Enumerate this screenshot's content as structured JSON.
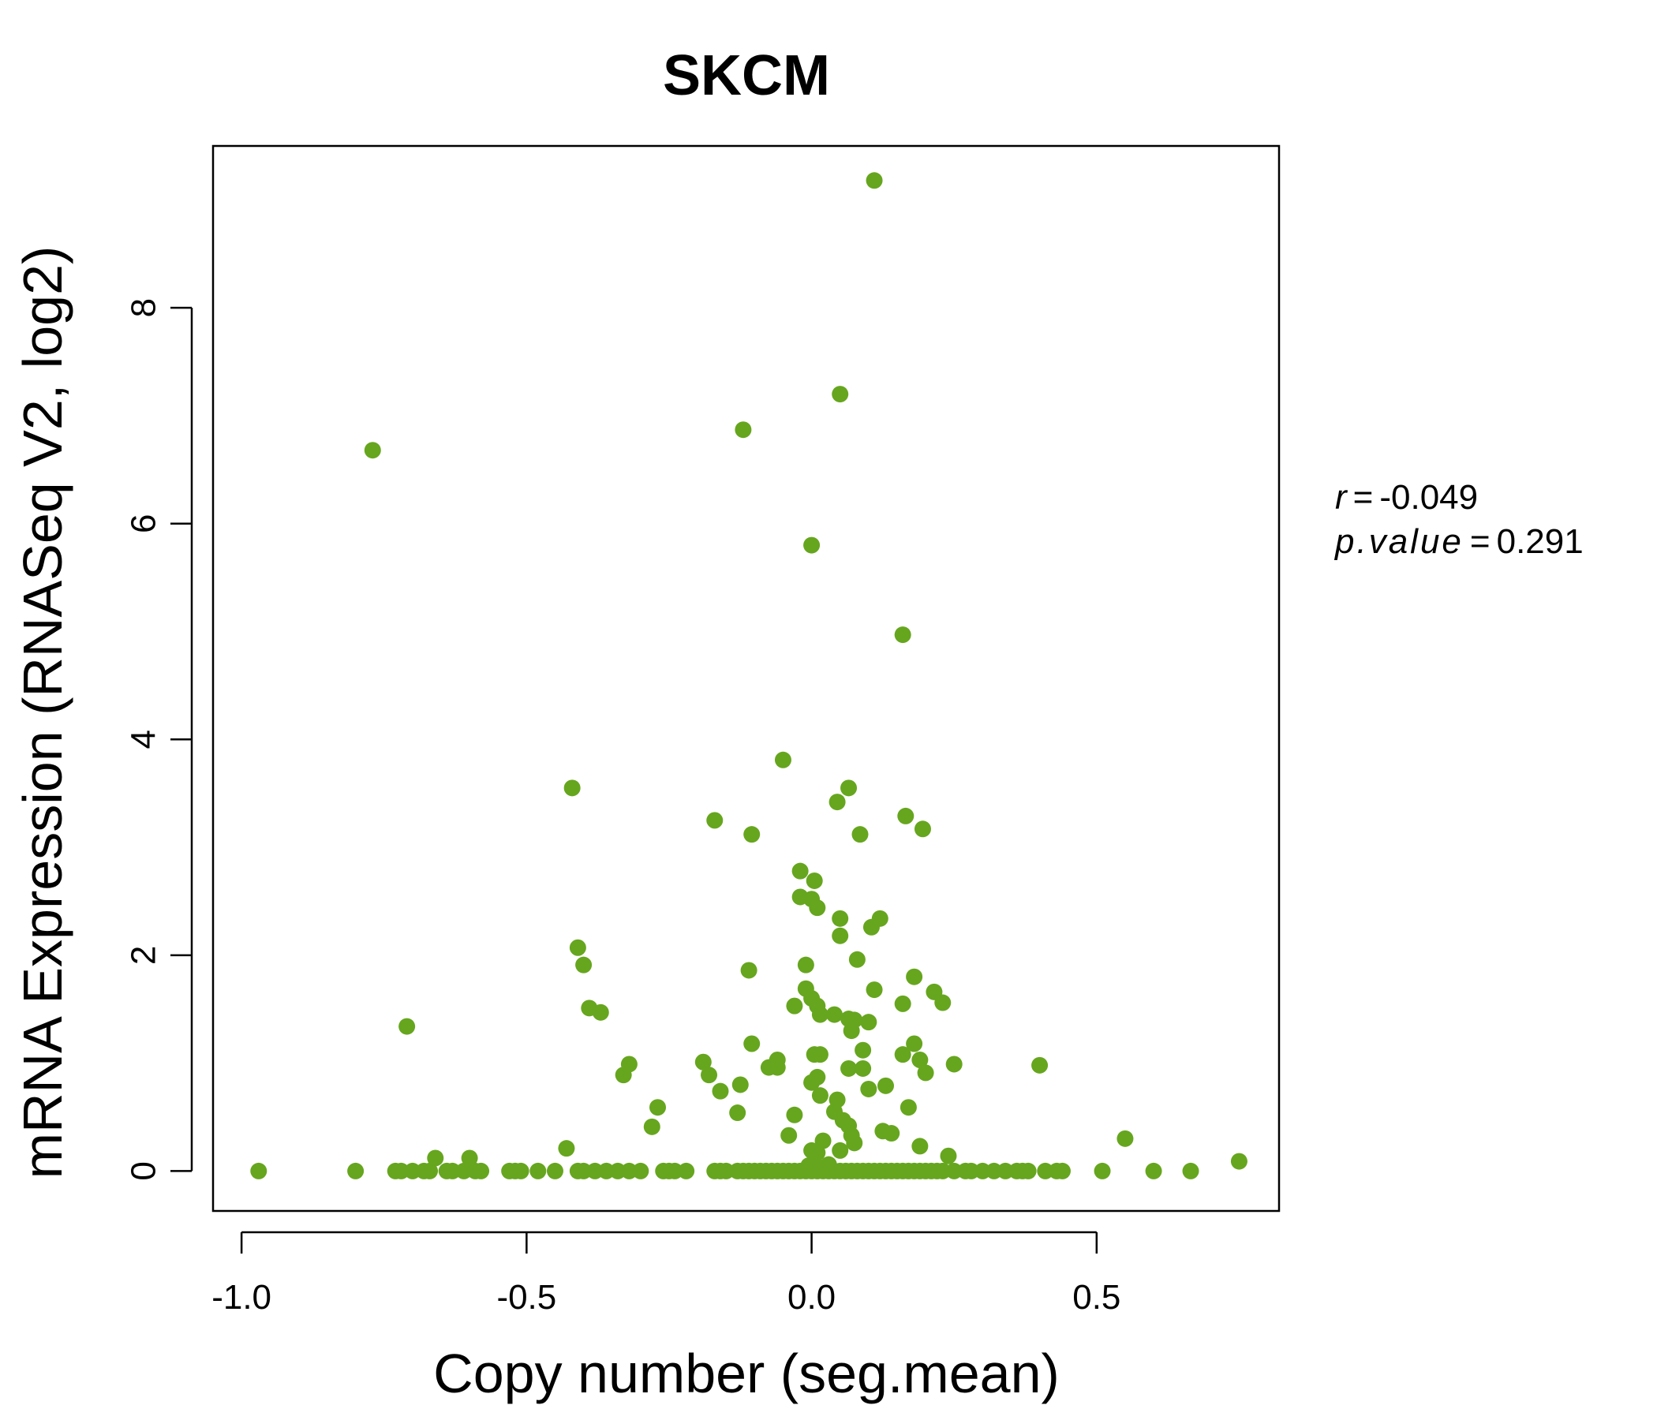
{
  "chart_data": {
    "type": "scatter",
    "title": "SKCM",
    "xlabel": "Copy number (seg.mean)",
    "ylabel": "mRNA Expression (RNASeq V2, log2)",
    "xlim": [
      -1.05,
      0.82
    ],
    "ylim": [
      -0.37,
      9.5
    ],
    "x_ticks": [
      -1.0,
      -0.5,
      0.0,
      0.5
    ],
    "x_tick_labels": [
      "-1.0",
      "-0.5",
      "0.0",
      "0.5"
    ],
    "y_ticks": [
      0,
      2,
      4,
      6,
      8
    ],
    "y_tick_labels": [
      "0",
      "2",
      "4",
      "6",
      "8"
    ],
    "grid": false,
    "color": "#66a61e",
    "stats": {
      "r_label": "r",
      "r_value": "-0.049",
      "p_label": "p.value",
      "p_value": "0.291"
    },
    "points": [
      {
        "x": 0.11,
        "y": 9.18
      },
      {
        "x": 0.05,
        "y": 7.2
      },
      {
        "x": -0.12,
        "y": 6.87
      },
      {
        "x": -0.77,
        "y": 6.68
      },
      {
        "x": 0.0,
        "y": 5.8
      },
      {
        "x": 0.16,
        "y": 4.97
      },
      {
        "x": -0.05,
        "y": 3.81
      },
      {
        "x": -0.42,
        "y": 3.55
      },
      {
        "x": 0.065,
        "y": 3.55
      },
      {
        "x": 0.045,
        "y": 3.42
      },
      {
        "x": 0.165,
        "y": 3.29
      },
      {
        "x": -0.17,
        "y": 3.25
      },
      {
        "x": 0.195,
        "y": 3.17
      },
      {
        "x": -0.105,
        "y": 3.12
      },
      {
        "x": 0.085,
        "y": 3.12
      },
      {
        "x": -0.02,
        "y": 2.78
      },
      {
        "x": 0.005,
        "y": 2.69
      },
      {
        "x": -0.02,
        "y": 2.54
      },
      {
        "x": 0.0,
        "y": 2.52
      },
      {
        "x": 0.01,
        "y": 2.44
      },
      {
        "x": 0.05,
        "y": 2.34
      },
      {
        "x": 0.12,
        "y": 2.34
      },
      {
        "x": 0.105,
        "y": 2.26
      },
      {
        "x": 0.05,
        "y": 2.18
      },
      {
        "x": -0.41,
        "y": 2.07
      },
      {
        "x": 0.08,
        "y": 1.96
      },
      {
        "x": -0.4,
        "y": 1.91
      },
      {
        "x": -0.11,
        "y": 1.86
      },
      {
        "x": -0.01,
        "y": 1.91
      },
      {
        "x": 0.18,
        "y": 1.8
      },
      {
        "x": -0.01,
        "y": 1.69
      },
      {
        "x": 0.11,
        "y": 1.68
      },
      {
        "x": 0.215,
        "y": 1.66
      },
      {
        "x": 0.0,
        "y": 1.6
      },
      {
        "x": 0.23,
        "y": 1.56
      },
      {
        "x": 0.16,
        "y": 1.55
      },
      {
        "x": 0.01,
        "y": 1.53
      },
      {
        "x": -0.03,
        "y": 1.53
      },
      {
        "x": -0.39,
        "y": 1.51
      },
      {
        "x": -0.37,
        "y": 1.47
      },
      {
        "x": 0.015,
        "y": 1.45
      },
      {
        "x": 0.04,
        "y": 1.45
      },
      {
        "x": 0.065,
        "y": 1.41
      },
      {
        "x": 0.075,
        "y": 1.4
      },
      {
        "x": 0.1,
        "y": 1.38
      },
      {
        "x": -0.71,
        "y": 1.34
      },
      {
        "x": 0.07,
        "y": 1.3
      },
      {
        "x": -0.105,
        "y": 1.18
      },
      {
        "x": 0.18,
        "y": 1.18
      },
      {
        "x": 0.09,
        "y": 1.12
      },
      {
        "x": 0.005,
        "y": 1.08
      },
      {
        "x": 0.015,
        "y": 1.08
      },
      {
        "x": 0.16,
        "y": 1.08
      },
      {
        "x": 0.19,
        "y": 1.03
      },
      {
        "x": -0.06,
        "y": 1.03
      },
      {
        "x": -0.19,
        "y": 1.01
      },
      {
        "x": -0.32,
        "y": 0.99
      },
      {
        "x": 0.25,
        "y": 0.99
      },
      {
        "x": 0.4,
        "y": 0.98
      },
      {
        "x": -0.075,
        "y": 0.96
      },
      {
        "x": -0.06,
        "y": 0.96
      },
      {
        "x": 0.065,
        "y": 0.95
      },
      {
        "x": 0.09,
        "y": 0.95
      },
      {
        "x": 0.2,
        "y": 0.91
      },
      {
        "x": -0.33,
        "y": 0.89
      },
      {
        "x": -0.18,
        "y": 0.89
      },
      {
        "x": 0.01,
        "y": 0.87
      },
      {
        "x": 0.0,
        "y": 0.82
      },
      {
        "x": -0.125,
        "y": 0.8
      },
      {
        "x": 0.13,
        "y": 0.79
      },
      {
        "x": 0.1,
        "y": 0.76
      },
      {
        "x": -0.16,
        "y": 0.74
      },
      {
        "x": 0.015,
        "y": 0.7
      },
      {
        "x": 0.045,
        "y": 0.66
      },
      {
        "x": -0.27,
        "y": 0.59
      },
      {
        "x": 0.17,
        "y": 0.59
      },
      {
        "x": 0.04,
        "y": 0.55
      },
      {
        "x": -0.13,
        "y": 0.54
      },
      {
        "x": -0.03,
        "y": 0.52
      },
      {
        "x": 0.055,
        "y": 0.47
      },
      {
        "x": 0.065,
        "y": 0.42
      },
      {
        "x": -0.28,
        "y": 0.41
      },
      {
        "x": 0.125,
        "y": 0.37
      },
      {
        "x": 0.14,
        "y": 0.35
      },
      {
        "x": 0.07,
        "y": 0.33
      },
      {
        "x": 0.55,
        "y": 0.3
      },
      {
        "x": -0.04,
        "y": 0.33
      },
      {
        "x": 0.02,
        "y": 0.28
      },
      {
        "x": 0.075,
        "y": 0.26
      },
      {
        "x": 0.19,
        "y": 0.23
      },
      {
        "x": -0.43,
        "y": 0.21
      },
      {
        "x": 0.0,
        "y": 0.19
      },
      {
        "x": 0.05,
        "y": 0.19
      },
      {
        "x": 0.01,
        "y": 0.17
      },
      {
        "x": 0.24,
        "y": 0.14
      },
      {
        "x": -0.66,
        "y": 0.12
      },
      {
        "x": -0.6,
        "y": 0.12
      },
      {
        "x": 0.75,
        "y": 0.09
      },
      {
        "x": 0.005,
        "y": 0.07
      },
      {
        "x": 0.03,
        "y": 0.06
      },
      {
        "x": -0.005,
        "y": 0.05
      },
      {
        "x": -0.97,
        "y": 0.0
      },
      {
        "x": -0.8,
        "y": 0.0
      },
      {
        "x": -0.73,
        "y": 0.0
      },
      {
        "x": -0.72,
        "y": 0.0
      },
      {
        "x": -0.7,
        "y": 0.0
      },
      {
        "x": -0.68,
        "y": 0.0
      },
      {
        "x": -0.67,
        "y": 0.0
      },
      {
        "x": -0.64,
        "y": 0.0
      },
      {
        "x": -0.63,
        "y": 0.0
      },
      {
        "x": -0.61,
        "y": 0.0
      },
      {
        "x": -0.59,
        "y": 0.0
      },
      {
        "x": -0.58,
        "y": 0.0
      },
      {
        "x": -0.53,
        "y": 0.0
      },
      {
        "x": -0.52,
        "y": 0.0
      },
      {
        "x": -0.51,
        "y": 0.0
      },
      {
        "x": -0.48,
        "y": 0.0
      },
      {
        "x": -0.45,
        "y": 0.0
      },
      {
        "x": -0.41,
        "y": 0.0
      },
      {
        "x": -0.4,
        "y": 0.0
      },
      {
        "x": -0.38,
        "y": 0.0
      },
      {
        "x": -0.36,
        "y": 0.0
      },
      {
        "x": -0.34,
        "y": 0.0
      },
      {
        "x": -0.32,
        "y": 0.0
      },
      {
        "x": -0.3,
        "y": 0.0
      },
      {
        "x": -0.26,
        "y": 0.0
      },
      {
        "x": -0.25,
        "y": 0.0
      },
      {
        "x": -0.24,
        "y": 0.0
      },
      {
        "x": -0.22,
        "y": 0.0
      },
      {
        "x": -0.17,
        "y": 0.0
      },
      {
        "x": -0.16,
        "y": 0.0
      },
      {
        "x": -0.15,
        "y": 0.0
      },
      {
        "x": -0.13,
        "y": 0.0
      },
      {
        "x": -0.12,
        "y": 0.0
      },
      {
        "x": -0.11,
        "y": 0.0
      },
      {
        "x": -0.1,
        "y": 0.0
      },
      {
        "x": -0.09,
        "y": 0.0
      },
      {
        "x": -0.08,
        "y": 0.0
      },
      {
        "x": -0.07,
        "y": 0.0
      },
      {
        "x": -0.06,
        "y": 0.0
      },
      {
        "x": -0.05,
        "y": 0.0
      },
      {
        "x": -0.04,
        "y": 0.0
      },
      {
        "x": -0.03,
        "y": 0.0
      },
      {
        "x": -0.02,
        "y": 0.0
      },
      {
        "x": -0.01,
        "y": 0.0
      },
      {
        "x": 0.0,
        "y": 0.0
      },
      {
        "x": 0.01,
        "y": 0.0
      },
      {
        "x": 0.02,
        "y": 0.0
      },
      {
        "x": 0.03,
        "y": 0.0
      },
      {
        "x": 0.04,
        "y": 0.0
      },
      {
        "x": 0.05,
        "y": 0.0
      },
      {
        "x": 0.06,
        "y": 0.0
      },
      {
        "x": 0.07,
        "y": 0.0
      },
      {
        "x": 0.08,
        "y": 0.0
      },
      {
        "x": 0.09,
        "y": 0.0
      },
      {
        "x": 0.1,
        "y": 0.0
      },
      {
        "x": 0.11,
        "y": 0.0
      },
      {
        "x": 0.12,
        "y": 0.0
      },
      {
        "x": 0.13,
        "y": 0.0
      },
      {
        "x": 0.14,
        "y": 0.0
      },
      {
        "x": 0.15,
        "y": 0.0
      },
      {
        "x": 0.16,
        "y": 0.0
      },
      {
        "x": 0.17,
        "y": 0.0
      },
      {
        "x": 0.18,
        "y": 0.0
      },
      {
        "x": 0.19,
        "y": 0.0
      },
      {
        "x": 0.2,
        "y": 0.0
      },
      {
        "x": 0.21,
        "y": 0.0
      },
      {
        "x": 0.22,
        "y": 0.0
      },
      {
        "x": 0.23,
        "y": 0.0
      },
      {
        "x": 0.25,
        "y": 0.0
      },
      {
        "x": 0.27,
        "y": 0.0
      },
      {
        "x": 0.28,
        "y": 0.0
      },
      {
        "x": 0.3,
        "y": 0.0
      },
      {
        "x": 0.32,
        "y": 0.0
      },
      {
        "x": 0.34,
        "y": 0.0
      },
      {
        "x": 0.36,
        "y": 0.0
      },
      {
        "x": 0.37,
        "y": 0.0
      },
      {
        "x": 0.38,
        "y": 0.0
      },
      {
        "x": 0.41,
        "y": 0.0
      },
      {
        "x": 0.43,
        "y": 0.0
      },
      {
        "x": 0.44,
        "y": 0.0
      },
      {
        "x": 0.51,
        "y": 0.0
      },
      {
        "x": 0.6,
        "y": 0.0
      },
      {
        "x": 0.665,
        "y": 0.0
      }
    ]
  }
}
